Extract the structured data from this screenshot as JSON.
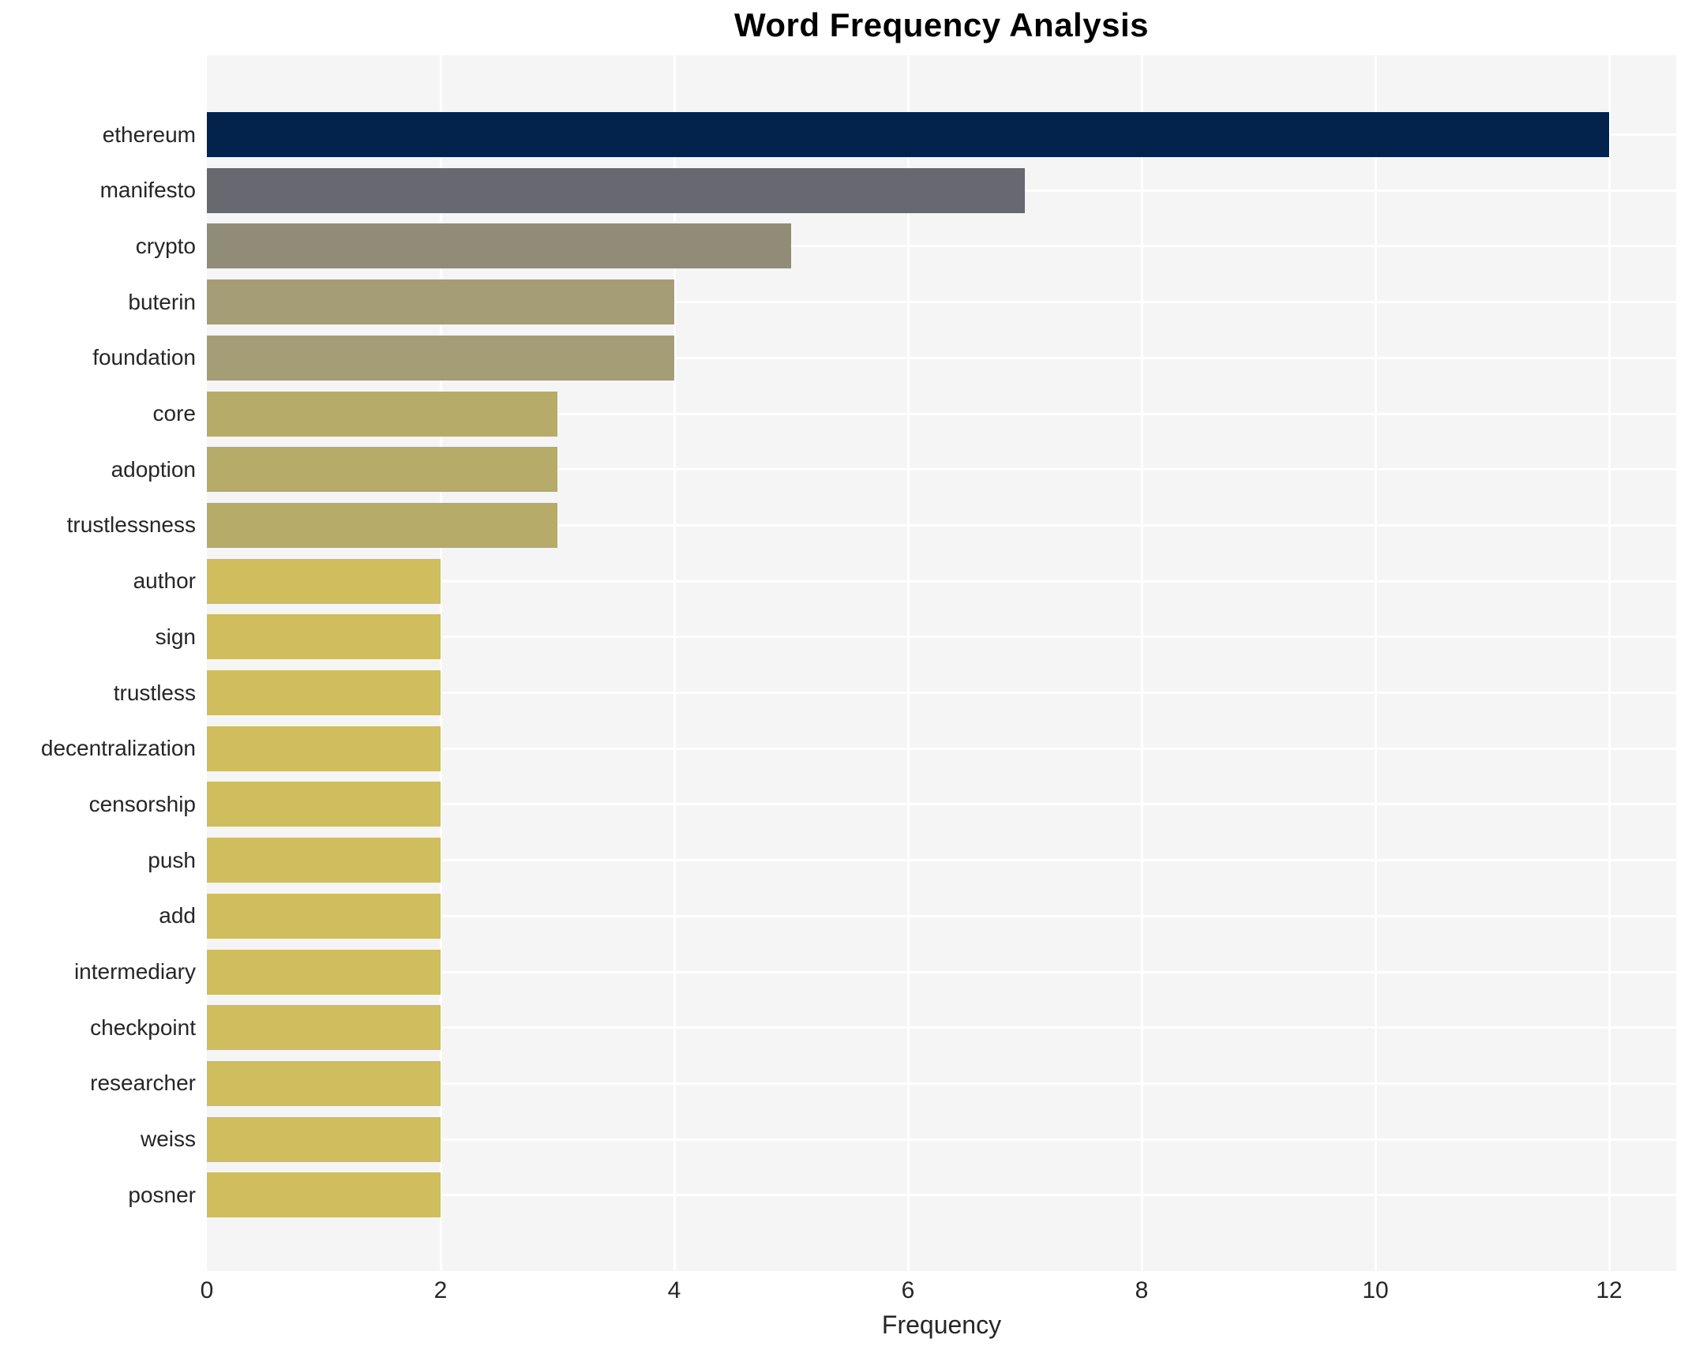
{
  "chart_data": {
    "type": "bar",
    "orientation": "horizontal",
    "title": "Word Frequency Analysis",
    "xlabel": "Frequency",
    "ylabel": "",
    "categories": [
      "ethereum",
      "manifesto",
      "crypto",
      "buterin",
      "foundation",
      "core",
      "adoption",
      "trustlessness",
      "author",
      "sign",
      "trustless",
      "decentralization",
      "censorship",
      "push",
      "add",
      "intermediary",
      "checkpoint",
      "researcher",
      "weiss",
      "posner"
    ],
    "values": [
      12,
      7,
      5,
      4,
      4,
      3,
      3,
      3,
      2,
      2,
      2,
      2,
      2,
      2,
      2,
      2,
      2,
      2,
      2,
      2
    ],
    "x_ticks": [
      "0",
      "2",
      "4",
      "6",
      "8",
      "10",
      "12"
    ],
    "xlim": [
      0,
      12.57
    ],
    "grid": true,
    "legend": false,
    "colors": {
      "bar_by_value": {
        "12": "#03234d",
        "7": "#686870",
        "5": "#918c78",
        "4": "#a59d75",
        "3": "#b6ab68",
        "2": "#cfbd5e"
      },
      "plot_background": "#f5f5f6",
      "grid_line": "#ffffff",
      "tick_text": "#262626",
      "title_text": "#000000"
    }
  }
}
